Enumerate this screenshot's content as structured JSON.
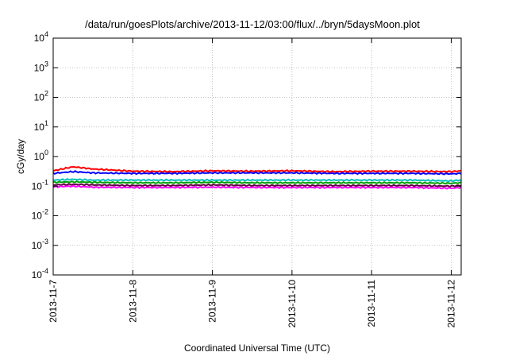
{
  "chart_data": {
    "type": "line",
    "title": "/data/run/goesPlots/archive/2013-11-12/03:00/flux/../bryn/5daysMoon.plot",
    "xlabel": "Coordinated Universal Time (UTC)",
    "ylabel": "cGy/day",
    "y_scale": "log",
    "ylim": [
      0.0001,
      10000
    ],
    "y_ticks": [
      {
        "base": "10",
        "exp": "-4",
        "value": 0.0001
      },
      {
        "base": "10",
        "exp": "-3",
        "value": 0.001
      },
      {
        "base": "10",
        "exp": "-2",
        "value": 0.01
      },
      {
        "base": "10",
        "exp": "-1",
        "value": 0.1
      },
      {
        "base": "10",
        "exp": "0",
        "value": 1
      },
      {
        "base": "10",
        "exp": "1",
        "value": 10
      },
      {
        "base": "10",
        "exp": "2",
        "value": 100
      },
      {
        "base": "10",
        "exp": "3",
        "value": 1000
      },
      {
        "base": "10",
        "exp": "4",
        "value": 10000
      }
    ],
    "x_ticks": [
      "2013-11-7",
      "2013-11-8",
      "2013-11-9",
      "2013-11-10",
      "2013-11-11",
      "2013-11-12"
    ],
    "xlim": [
      "2013-11-07T00:00",
      "2013-11-12T03:00"
    ],
    "grid": true,
    "series": [
      {
        "color": "#ff0000",
        "x": [
          "2013-11-07T00:00",
          "2013-11-07T06:00",
          "2013-11-07T12:00",
          "2013-11-08T00:00",
          "2013-11-08T12:00",
          "2013-11-09T00:00",
          "2013-11-09T12:00",
          "2013-11-10T00:00",
          "2013-11-10T12:00",
          "2013-11-11T00:00",
          "2013-11-11T12:00",
          "2013-11-12T00:00",
          "2013-11-12T03:00"
        ],
        "values": [
          0.33,
          0.45,
          0.38,
          0.32,
          0.31,
          0.33,
          0.32,
          0.33,
          0.31,
          0.32,
          0.32,
          0.31,
          0.33
        ]
      },
      {
        "color": "#0000ff",
        "x": [
          "2013-11-07T00:00",
          "2013-11-07T06:00",
          "2013-11-07T12:00",
          "2013-11-08T00:00",
          "2013-11-08T12:00",
          "2013-11-09T00:00",
          "2013-11-09T12:00",
          "2013-11-10T00:00",
          "2013-11-10T12:00",
          "2013-11-11T00:00",
          "2013-11-11T12:00",
          "2013-11-12T00:00",
          "2013-11-12T03:00"
        ],
        "values": [
          0.27,
          0.31,
          0.28,
          0.27,
          0.27,
          0.28,
          0.28,
          0.28,
          0.27,
          0.27,
          0.27,
          0.26,
          0.27
        ]
      },
      {
        "color": "#00c0c0",
        "x": [
          "2013-11-07T00:00",
          "2013-11-07T06:00",
          "2013-11-07T12:00",
          "2013-11-08T00:00",
          "2013-11-08T12:00",
          "2013-11-09T00:00",
          "2013-11-09T12:00",
          "2013-11-10T00:00",
          "2013-11-10T12:00",
          "2013-11-11T00:00",
          "2013-11-11T12:00",
          "2013-11-12T00:00",
          "2013-11-12T03:00"
        ],
        "values": [
          0.16,
          0.17,
          0.16,
          0.16,
          0.16,
          0.16,
          0.16,
          0.16,
          0.16,
          0.16,
          0.16,
          0.15,
          0.16
        ]
      },
      {
        "color": "#00a000",
        "x": [
          "2013-11-07T00:00",
          "2013-11-07T06:00",
          "2013-11-07T12:00",
          "2013-11-08T00:00",
          "2013-11-08T12:00",
          "2013-11-09T00:00",
          "2013-11-09T12:00",
          "2013-11-10T00:00",
          "2013-11-10T12:00",
          "2013-11-11T00:00",
          "2013-11-11T12:00",
          "2013-11-12T00:00",
          "2013-11-12T03:00"
        ],
        "values": [
          0.135,
          0.14,
          0.135,
          0.13,
          0.13,
          0.135,
          0.13,
          0.13,
          0.13,
          0.13,
          0.13,
          0.125,
          0.13
        ]
      },
      {
        "color": "#600040",
        "x": [
          "2013-11-07T00:00",
          "2013-11-07T06:00",
          "2013-11-07T12:00",
          "2013-11-08T00:00",
          "2013-11-08T12:00",
          "2013-11-09T00:00",
          "2013-11-09T12:00",
          "2013-11-10T00:00",
          "2013-11-10T12:00",
          "2013-11-11T00:00",
          "2013-11-11T12:00",
          "2013-11-12T00:00",
          "2013-11-12T03:00"
        ],
        "values": [
          0.11,
          0.115,
          0.11,
          0.105,
          0.105,
          0.11,
          0.105,
          0.105,
          0.105,
          0.105,
          0.105,
          0.1,
          0.105
        ]
      },
      {
        "color": "#ff00ff",
        "x": [
          "2013-11-07T00:00",
          "2013-11-07T06:00",
          "2013-11-07T12:00",
          "2013-11-08T00:00",
          "2013-11-08T12:00",
          "2013-11-09T00:00",
          "2013-11-09T12:00",
          "2013-11-10T00:00",
          "2013-11-10T12:00",
          "2013-11-11T00:00",
          "2013-11-11T12:00",
          "2013-11-12T00:00",
          "2013-11-12T03:00"
        ],
        "values": [
          0.095,
          0.1,
          0.092,
          0.09,
          0.09,
          0.092,
          0.09,
          0.09,
          0.09,
          0.09,
          0.09,
          0.085,
          0.09
        ]
      }
    ]
  }
}
